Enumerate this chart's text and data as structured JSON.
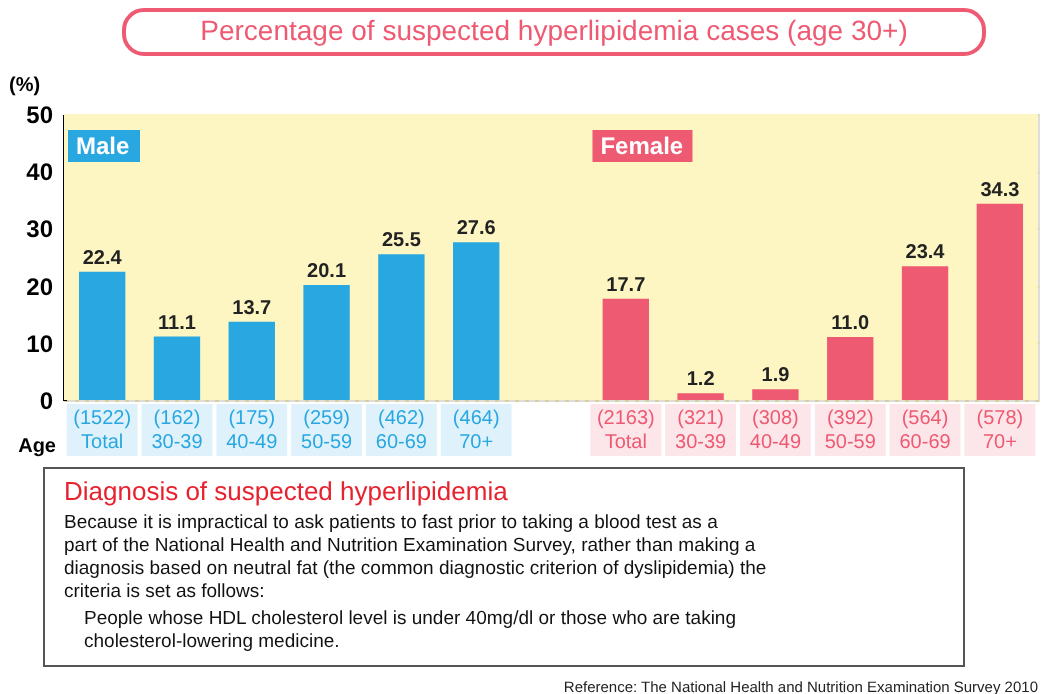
{
  "chart_data": {
    "type": "bar",
    "title": "Percentage of suspected hyperlipidemia cases (age 30+)",
    "xlabel": "Age",
    "ylabel": "(%)",
    "categories": [
      "(1522)\nTotal",
      "(162)\n30-39",
      "(175)\n40-49",
      "(259)\n50-59",
      "(462)\n60-69",
      "(464)\n70+",
      null,
      "(2163)\nTotal",
      "(321)\n30-39",
      "(308)\n40-49",
      "(392)\n50-59",
      "(564)\n60-69",
      "(578)\n70+"
    ],
    "series": [
      {
        "name": "Male",
        "color": "#29a7e1",
        "values": [
          22.4,
          11.1,
          13.7,
          20.1,
          25.5,
          27.6,
          null,
          null,
          null,
          null,
          null,
          null,
          null
        ]
      },
      {
        "name": "Female",
        "color": "#ee5a72",
        "values": [
          null,
          null,
          null,
          null,
          null,
          null,
          null,
          17.7,
          1.2,
          1.9,
          11.0,
          23.4,
          34.3
        ]
      }
    ],
    "value_labels": [
      [
        "22.4",
        "11.1",
        "13.7",
        "20.1",
        "25.5",
        "27.6",
        null,
        null,
        null,
        null,
        null,
        null,
        null
      ],
      [
        null,
        null,
        null,
        null,
        null,
        null,
        null,
        "17.7",
        "1.2",
        "1.9",
        "11.0",
        "23.4",
        "34.3"
      ]
    ],
    "ylim": [
      0,
      50
    ],
    "yticks": [
      0,
      10,
      20,
      30,
      40,
      50
    ],
    "grid": "y",
    "legend": "top left",
    "annotations": [
      "Diagnosis of suspected hyperlipidemia",
      "Because it is impractical to ask patients to fast prior to taking a blood test as a part of the National Health and Nutrition Examination Survey, rather than making a diagnosis based on neutral fat (the common diagnostic criterion of dyslipidemia) the criteria is set as follows:",
      "People whose HDL cholesterol level is under 40mg/dl or those who are taking cholesterol-lowering medicine.",
      "Reference: The National Health and Nutrition Examination Survey 2010"
    ]
  }
}
